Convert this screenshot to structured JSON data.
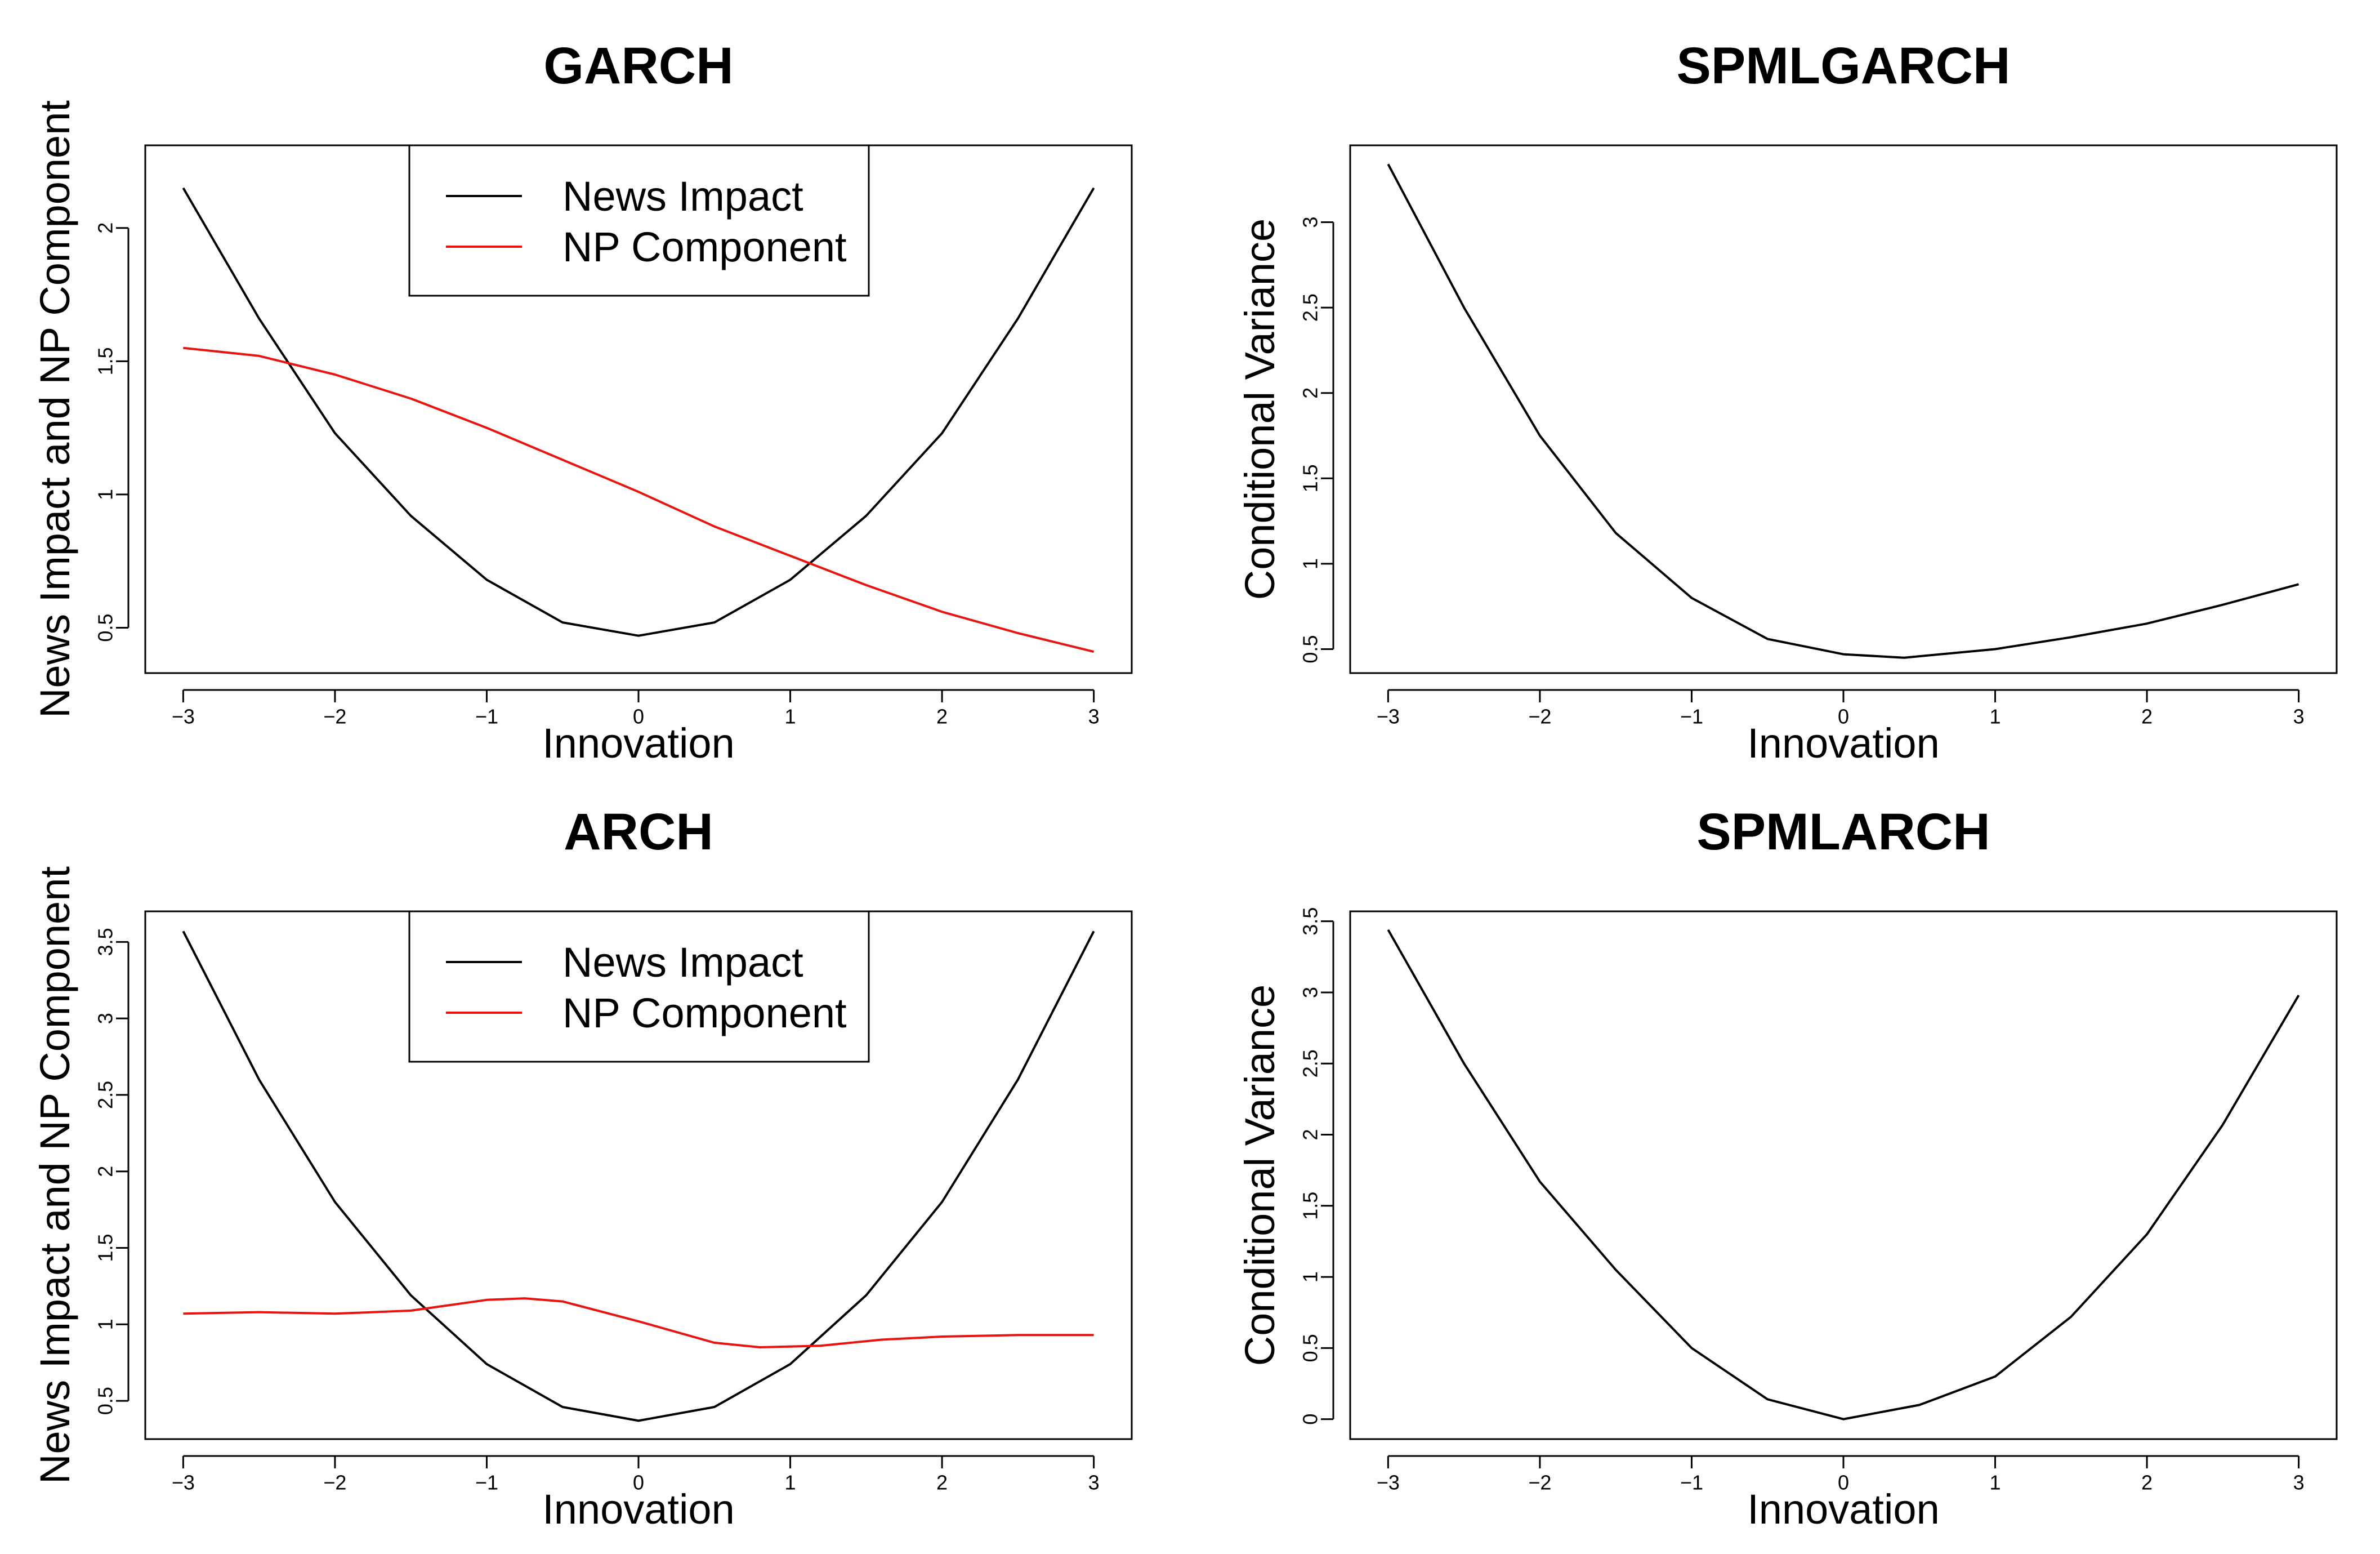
{
  "colors": {
    "news_impact": "#000000",
    "np_component": "#e8140f",
    "background": "#ffffff"
  },
  "chart_data": [
    {
      "type": "line",
      "title": "GARCH",
      "xlabel": "Innovation",
      "ylabel": "News Impact and NP Component",
      "xlim": [
        -3.25,
        3.25
      ],
      "ylim": [
        0.33,
        2.31
      ],
      "xticks": [
        -3,
        -2,
        -1,
        0,
        1,
        2,
        3
      ],
      "yticks": [
        0.5,
        1.0,
        1.5,
        2.0
      ],
      "legend": {
        "position": "top-center",
        "entries": [
          "News Impact",
          "NP Component"
        ]
      },
      "series": [
        {
          "name": "News Impact",
          "color": "#000000",
          "points": [
            [
              -3,
              2.15
            ],
            [
              -2.5,
              1.66
            ],
            [
              -2,
              1.23
            ],
            [
              -1.5,
              0.92
            ],
            [
              -1,
              0.68
            ],
            [
              -0.5,
              0.52
            ],
            [
              0,
              0.47
            ],
            [
              0.5,
              0.52
            ],
            [
              1,
              0.68
            ],
            [
              1.5,
              0.92
            ],
            [
              2,
              1.23
            ],
            [
              2.5,
              1.66
            ],
            [
              3,
              2.15
            ]
          ]
        },
        {
          "name": "NP Component",
          "color": "#e8140f",
          "points": [
            [
              -3,
              1.55
            ],
            [
              -2.5,
              1.52
            ],
            [
              -2,
              1.45
            ],
            [
              -1.5,
              1.36
            ],
            [
              -1,
              1.25
            ],
            [
              -0.5,
              1.13
            ],
            [
              0,
              1.01
            ],
            [
              0.5,
              0.88
            ],
            [
              1,
              0.77
            ],
            [
              1.5,
              0.66
            ],
            [
              2,
              0.56
            ],
            [
              2.5,
              0.48
            ],
            [
              3,
              0.41
            ]
          ]
        }
      ]
    },
    {
      "type": "line",
      "title": "SPMLGARCH",
      "xlabel": "Innovation",
      "ylabel": "Conditional Variance",
      "xlim": [
        -3.25,
        3.25
      ],
      "ylim": [
        0.36,
        3.45
      ],
      "xticks": [
        -3,
        -2,
        -1,
        0,
        1,
        2,
        3
      ],
      "yticks": [
        0.5,
        1.0,
        1.5,
        2.0,
        2.5,
        3.0
      ],
      "legend": null,
      "series": [
        {
          "name": "Conditional Variance",
          "color": "#000000",
          "points": [
            [
              -3,
              3.34
            ],
            [
              -2.5,
              2.5
            ],
            [
              -2,
              1.75
            ],
            [
              -1.5,
              1.18
            ],
            [
              -1,
              0.8
            ],
            [
              -0.5,
              0.56
            ],
            [
              0,
              0.47
            ],
            [
              0.4,
              0.45
            ],
            [
              1,
              0.5
            ],
            [
              1.5,
              0.57
            ],
            [
              2,
              0.65
            ],
            [
              2.5,
              0.76
            ],
            [
              3,
              0.88
            ]
          ]
        }
      ]
    },
    {
      "type": "line",
      "title": "ARCH",
      "xlabel": "Innovation",
      "ylabel": "News Impact and NP Component",
      "xlim": [
        -3.25,
        3.25
      ],
      "ylim": [
        0.25,
        3.7
      ],
      "xticks": [
        -3,
        -2,
        -1,
        0,
        1,
        2,
        3
      ],
      "yticks": [
        0.5,
        1.0,
        1.5,
        2.0,
        2.5,
        3.0,
        3.5
      ],
      "legend": {
        "position": "top-center",
        "entries": [
          "News Impact",
          "NP Component"
        ]
      },
      "series": [
        {
          "name": "News Impact",
          "color": "#000000",
          "points": [
            [
              -3,
              3.57
            ],
            [
              -2.5,
              2.6
            ],
            [
              -2,
              1.8
            ],
            [
              -1.5,
              1.19
            ],
            [
              -1,
              0.74
            ],
            [
              -0.5,
              0.46
            ],
            [
              0,
              0.37
            ],
            [
              0.5,
              0.46
            ],
            [
              1,
              0.74
            ],
            [
              1.5,
              1.19
            ],
            [
              2,
              1.8
            ],
            [
              2.5,
              2.6
            ],
            [
              3,
              3.57
            ]
          ]
        },
        {
          "name": "NP Component",
          "color": "#e8140f",
          "points": [
            [
              -3,
              1.07
            ],
            [
              -2.5,
              1.08
            ],
            [
              -2,
              1.07
            ],
            [
              -1.5,
              1.09
            ],
            [
              -1,
              1.16
            ],
            [
              -0.75,
              1.17
            ],
            [
              -0.5,
              1.15
            ],
            [
              0,
              1.02
            ],
            [
              0.5,
              0.88
            ],
            [
              0.8,
              0.85
            ],
            [
              1.2,
              0.86
            ],
            [
              1.6,
              0.9
            ],
            [
              2,
              0.92
            ],
            [
              2.5,
              0.93
            ],
            [
              3,
              0.93
            ]
          ]
        }
      ]
    },
    {
      "type": "line",
      "title": "SPMLARCH",
      "xlabel": "Innovation",
      "ylabel": "Conditional Variance",
      "xlim": [
        -3.25,
        3.25
      ],
      "ylim": [
        -0.14,
        3.57
      ],
      "xticks": [
        -3,
        -2,
        -1,
        0,
        1,
        2,
        3
      ],
      "yticks": [
        0.0,
        0.5,
        1.0,
        1.5,
        2.0,
        2.5,
        3.0,
        3.5
      ],
      "legend": null,
      "series": [
        {
          "name": "Conditional Variance",
          "color": "#000000",
          "points": [
            [
              -3,
              3.44
            ],
            [
              -2.5,
              2.5
            ],
            [
              -2,
              1.67
            ],
            [
              -1.5,
              1.05
            ],
            [
              -1,
              0.5
            ],
            [
              -0.5,
              0.14
            ],
            [
              0,
              0.0
            ],
            [
              0.5,
              0.1
            ],
            [
              1,
              0.3
            ],
            [
              1.5,
              0.72
            ],
            [
              2,
              1.3
            ],
            [
              2.5,
              2.07
            ],
            [
              3,
              2.98
            ]
          ]
        }
      ]
    }
  ]
}
